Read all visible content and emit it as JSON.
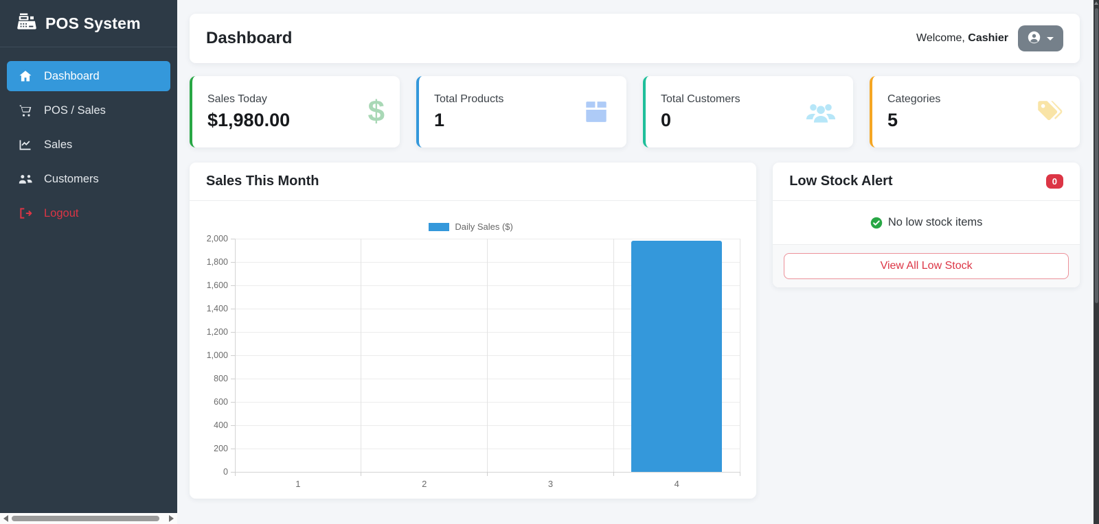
{
  "app": {
    "brand": "POS System"
  },
  "sidebar": {
    "items": [
      {
        "label": "Dashboard",
        "icon": "home-icon",
        "active": true
      },
      {
        "label": "POS / Sales",
        "icon": "cart-icon",
        "active": false
      },
      {
        "label": "Sales",
        "icon": "chart-line-icon",
        "active": false
      },
      {
        "label": "Customers",
        "icon": "users-icon",
        "active": false
      },
      {
        "label": "Logout",
        "icon": "logout-icon",
        "active": false,
        "danger": true
      }
    ]
  },
  "header": {
    "title": "Dashboard",
    "welcome_prefix": "Welcome, ",
    "username": "Cashier",
    "user_button_icon": "person-circle-icon"
  },
  "stats": [
    {
      "label": "Sales Today",
      "value": "$1,980.00",
      "accent": "#28a745",
      "icon": "dollar-icon",
      "icon_color": "#a9d8b6"
    },
    {
      "label": "Total Products",
      "value": "1",
      "accent": "#3498db",
      "icon": "box-icon",
      "icon_color": "#aecbf7"
    },
    {
      "label": "Total Customers",
      "value": "0",
      "accent": "#1fbf9a",
      "icon": "users-group-icon",
      "icon_color": "#b6e6f8"
    },
    {
      "label": "Categories",
      "value": "5",
      "accent": "#f5a623",
      "icon": "tags-icon",
      "icon_color": "#f9e4a6"
    }
  ],
  "chart_card": {
    "title": "Sales This Month"
  },
  "chart_data": {
    "type": "bar",
    "title": "Sales This Month",
    "categories": [
      "1",
      "2",
      "3",
      "4"
    ],
    "series": [
      {
        "name": "Daily Sales ($)",
        "values": [
          0,
          0,
          0,
          1980
        ],
        "color": "#3498db"
      }
    ],
    "xlabel": "",
    "ylabel": "",
    "ylim": [
      0,
      2000
    ],
    "ytick_step": 200,
    "grid": true,
    "legend_position": "top",
    "bar_width_fraction": 0.72
  },
  "low_stock": {
    "title": "Low Stock Alert",
    "badge": "0",
    "empty_message": "No low stock items",
    "button_label": "View All Low Stock"
  },
  "colors": {
    "sidebar_bg": "#2d3a46",
    "active_item": "#3498db",
    "logout_red": "#dc3545",
    "bar_blue": "#3498db",
    "badge_red": "#dc3545",
    "check_green": "#28a745",
    "user_button_gray": "#75808a",
    "page_bg": "#f4f6f9"
  }
}
